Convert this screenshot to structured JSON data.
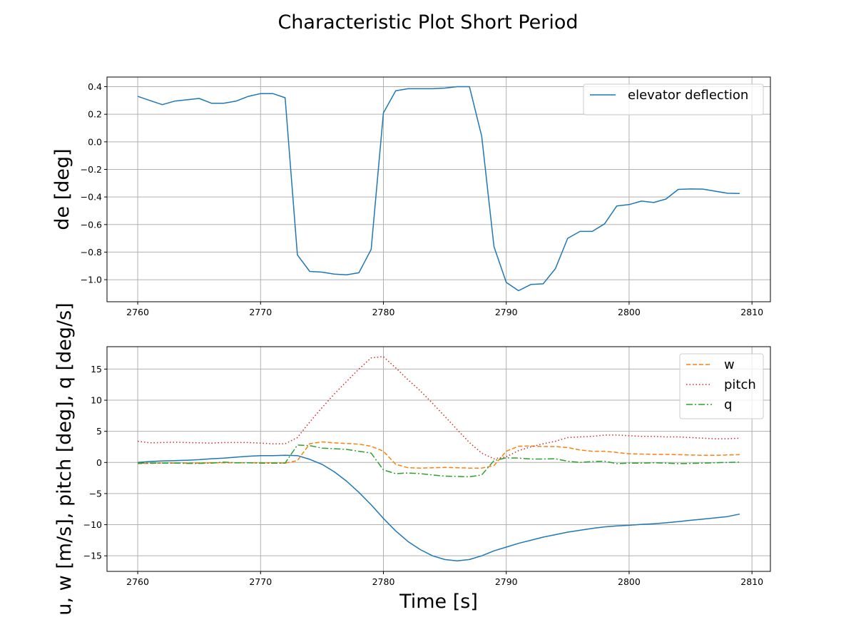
{
  "figure": {
    "title": "Characteristic Plot Short Period"
  },
  "chart_data": [
    {
      "type": "line",
      "title": "",
      "xlabel": "",
      "ylabel": "de [deg]",
      "xlim": [
        2757.5,
        2811.5
      ],
      "ylim": [
        -1.16,
        0.47
      ],
      "xticks": [
        2760,
        2770,
        2780,
        2790,
        2800,
        2810
      ],
      "yticks": [
        -1.0,
        -0.8,
        -0.6,
        -0.4,
        -0.2,
        0.0,
        0.2,
        0.4
      ],
      "ytick_labels": [
        "−1.0",
        "−0.8",
        "−0.6",
        "−0.4",
        "−0.2",
        "0.0",
        "0.2",
        "0.4"
      ],
      "grid": true,
      "legend_position": "upper-right",
      "x": [
        2760,
        2761,
        2762,
        2763,
        2764,
        2765,
        2766,
        2767,
        2768,
        2769,
        2770,
        2771,
        2772,
        2773,
        2774,
        2775,
        2776,
        2777,
        2778,
        2779,
        2780,
        2781,
        2782,
        2783,
        2784,
        2785,
        2786,
        2787,
        2788,
        2789,
        2790,
        2791,
        2792,
        2793,
        2794,
        2795,
        2796,
        2797,
        2798,
        2799,
        2800,
        2801,
        2802,
        2803,
        2804,
        2805,
        2806,
        2807,
        2808,
        2809
      ],
      "series": [
        {
          "name": "elevator deflection",
          "color": "#1f77b4",
          "dash": "solid",
          "values": [
            0.33,
            0.3,
            0.27,
            0.295,
            0.305,
            0.315,
            0.28,
            0.28,
            0.295,
            0.33,
            0.35,
            0.35,
            0.32,
            -0.82,
            -0.94,
            -0.945,
            -0.96,
            -0.965,
            -0.95,
            -0.78,
            0.21,
            0.37,
            0.385,
            0.385,
            0.385,
            0.39,
            0.4,
            0.4,
            0.04,
            -0.76,
            -1.02,
            -1.08,
            -1.035,
            -1.03,
            -0.92,
            -0.7,
            -0.65,
            -0.65,
            -0.595,
            -0.465,
            -0.455,
            -0.43,
            -0.44,
            -0.415,
            -0.345,
            -0.342,
            -0.343,
            -0.358,
            -0.373,
            -0.375
          ]
        }
      ]
    },
    {
      "type": "line",
      "title": "",
      "xlabel": "Time [s]",
      "ylabel": "u, w [m/s], pitch [deg], q [deg/s]",
      "xlim": [
        2757.5,
        2811.5
      ],
      "ylim": [
        -17.5,
        18.6
      ],
      "xticks": [
        2760,
        2770,
        2780,
        2790,
        2800,
        2810
      ],
      "yticks": [
        -15,
        -10,
        -5,
        0,
        5,
        10,
        15
      ],
      "ytick_labels": [
        "−15",
        "−10",
        "−5",
        "0",
        "5",
        "10",
        "15"
      ],
      "grid": true,
      "legend_position": "upper-right",
      "legend_series": [
        1,
        2,
        3
      ],
      "x": [
        2760,
        2761,
        2762,
        2763,
        2764,
        2765,
        2766,
        2767,
        2768,
        2769,
        2770,
        2771,
        2772,
        2773,
        2774,
        2775,
        2776,
        2777,
        2778,
        2779,
        2780,
        2781,
        2782,
        2783,
        2784,
        2785,
        2786,
        2787,
        2788,
        2789,
        2790,
        2791,
        2792,
        2793,
        2794,
        2795,
        2796,
        2797,
        2798,
        2799,
        2800,
        2801,
        2802,
        2803,
        2804,
        2805,
        2806,
        2807,
        2808,
        2809
      ],
      "series": [
        {
          "color": "#1f77b4",
          "dash": "solid",
          "values": [
            0.0,
            0.15,
            0.25,
            0.3,
            0.35,
            0.45,
            0.6,
            0.7,
            0.85,
            1.0,
            1.1,
            1.1,
            1.15,
            1.1,
            0.5,
            -0.3,
            -1.5,
            -3.0,
            -4.8,
            -6.8,
            -9.0,
            -11.0,
            -12.7,
            -14.0,
            -15.0,
            -15.6,
            -15.8,
            -15.6,
            -15.0,
            -14.2,
            -13.6,
            -13.0,
            -12.5,
            -12.0,
            -11.6,
            -11.2,
            -10.9,
            -10.6,
            -10.35,
            -10.2,
            -10.1,
            -9.95,
            -9.85,
            -9.7,
            -9.5,
            -9.3,
            -9.1,
            -8.9,
            -8.7,
            -8.3
          ]
        },
        {
          "name": "w",
          "color": "#ff7f0e",
          "dash": "dashed",
          "values": [
            -0.2,
            -0.15,
            -0.1,
            -0.1,
            -0.1,
            -0.1,
            -0.05,
            -0.05,
            -0.05,
            -0.05,
            -0.05,
            -0.05,
            -0.1,
            0.3,
            3.0,
            3.3,
            3.15,
            3.05,
            2.95,
            2.6,
            1.8,
            -0.3,
            -0.85,
            -0.9,
            -0.85,
            -0.8,
            -0.85,
            -0.9,
            -0.9,
            -0.5,
            1.8,
            2.6,
            2.65,
            2.55,
            2.55,
            2.4,
            2.0,
            1.8,
            1.8,
            1.6,
            1.4,
            1.35,
            1.3,
            1.3,
            1.25,
            1.2,
            1.15,
            1.15,
            1.2,
            1.25
          ]
        },
        {
          "name": "pitch",
          "color": "#d62728",
          "dash": "dotted",
          "values": [
            3.4,
            3.15,
            3.2,
            3.25,
            3.2,
            3.15,
            3.1,
            3.2,
            3.2,
            3.2,
            3.1,
            3.0,
            3.0,
            4.0,
            6.5,
            8.8,
            11.0,
            13.0,
            15.0,
            16.8,
            17.0,
            15.2,
            13.3,
            11.5,
            9.5,
            7.4,
            5.3,
            3.2,
            1.5,
            0.6,
            0.9,
            1.9,
            2.5,
            3.0,
            3.4,
            4.0,
            4.1,
            4.2,
            4.4,
            4.4,
            4.3,
            4.2,
            4.2,
            4.1,
            4.1,
            4.0,
            3.9,
            3.8,
            3.8,
            3.9
          ]
        },
        {
          "name": "q",
          "color": "#2ca02c",
          "dash": "dashdot",
          "values": [
            -0.1,
            -0.1,
            -0.1,
            -0.1,
            -0.15,
            -0.15,
            -0.1,
            0.05,
            -0.05,
            -0.05,
            -0.1,
            -0.1,
            -0.1,
            2.8,
            2.7,
            2.3,
            2.2,
            2.1,
            1.8,
            1.5,
            -1.2,
            -1.8,
            -1.7,
            -1.8,
            -2.0,
            -2.2,
            -2.25,
            -2.3,
            -2.0,
            0.3,
            0.75,
            0.7,
            0.55,
            0.55,
            0.6,
            0.2,
            0.0,
            0.15,
            0.2,
            -0.2,
            -0.1,
            -0.1,
            -0.05,
            -0.1,
            -0.2,
            -0.15,
            -0.1,
            -0.05,
            0.0,
            0.05
          ]
        }
      ]
    }
  ]
}
